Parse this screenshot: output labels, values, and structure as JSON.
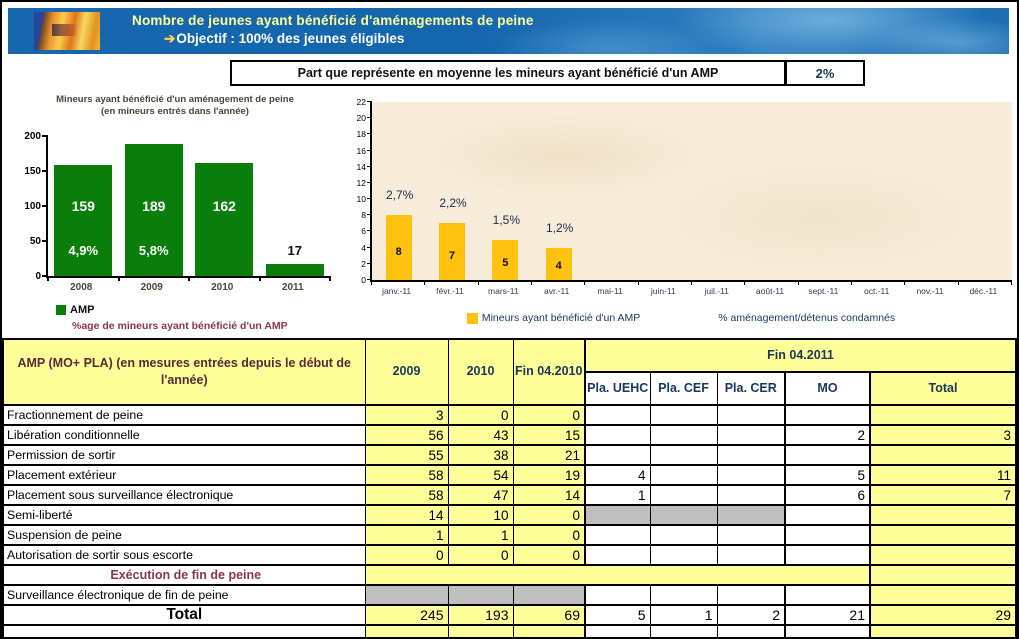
{
  "header": {
    "title": "Nombre de jeunes ayant bénéficié d'aménagements de peine",
    "objective_arrow": "➔",
    "objective": "Objectif : 100% des jeunes éligibles"
  },
  "subheader": {
    "label": "Part que représente en moyenne les mineurs ayant bénéficié d'un AMP",
    "value": "2%"
  },
  "colors": {
    "green_bar": "#0a7d0a",
    "gold_bar": "#ffc20e",
    "table_yellow": "#ffff99",
    "table_gray": "#bfbfbf",
    "navy_text": "#17375E",
    "maroon_text": "#8a3550",
    "header_blue": "#1667ae",
    "header_title_yellow": "#ffff99"
  },
  "chart_data": [
    {
      "type": "bar",
      "title": "Mineurs ayant bénéficié d'un aménagement de peine",
      "subtitle": "(en mineurs entrés dans l'année)",
      "categories": [
        "2008",
        "2009",
        "2010",
        "2011"
      ],
      "values": [
        159,
        189,
        162,
        17
      ],
      "pct_labels": [
        "4,9%",
        "5,8%",
        "",
        ""
      ],
      "xlabel": "",
      "ylabel": "",
      "ylim": [
        0,
        200
      ],
      "yticks": [
        0,
        50,
        100,
        150,
        200
      ],
      "grid": false,
      "bar_color": "#0a7d0a",
      "legend": [
        {
          "label": "AMP",
          "color": "#0a7d0a"
        }
      ],
      "legend_position": "bottom-left",
      "caption": "%age de mineurs ayant bénéficié d'un AMP"
    },
    {
      "type": "bar",
      "title": "",
      "categories": [
        "janv.-11",
        "févr.-11",
        "mars-11",
        "avr.-11",
        "mai-11",
        "juin-11",
        "juil.-11",
        "août-11",
        "sept.-11",
        "oct.-11",
        "nov.-11",
        "déc.-11"
      ],
      "values": [
        8,
        7,
        5,
        4,
        null,
        null,
        null,
        null,
        null,
        null,
        null,
        null
      ],
      "pct_labels": [
        "2,7%",
        "2,2%",
        "1,5%",
        "1,2%",
        "",
        "",
        "",
        "",
        "",
        "",
        "",
        ""
      ],
      "xlabel": "",
      "ylabel": "",
      "ylim": [
        0,
        22
      ],
      "yticks": [
        0,
        2,
        4,
        6,
        8,
        10,
        12,
        14,
        16,
        18,
        20,
        22
      ],
      "grid": false,
      "bar_color": "#ffc20e",
      "plot_bg": "#f6ecd9",
      "legend": [
        {
          "label": "Mineurs ayant bénéficié d'un AMP",
          "color": "#ffc20e"
        },
        {
          "label": "% aménagement/détenus condamnés",
          "color": null
        }
      ],
      "legend_position": "bottom-center"
    }
  ],
  "table": {
    "header": {
      "row_header": "AMP  (MO+ PLA) (en mesures entrées depuis le début de l'année)",
      "col_2009": "2009",
      "col_2010": "2010",
      "col_fin2010": "Fin 04.2010",
      "group_fin2011": "Fin 04.2011",
      "sub_cols": [
        "Pla. UEHC",
        "Pla. CEF",
        "Pla. CER",
        "MO",
        "Total"
      ]
    },
    "rows": [
      {
        "type": "data",
        "label": "Fractionnement de peine",
        "cells": [
          "3",
          "0",
          "0",
          "",
          "",
          "",
          "",
          ""
        ]
      },
      {
        "type": "data",
        "label": "Libération conditionnelle",
        "cells": [
          "56",
          "43",
          "15",
          "",
          "",
          "",
          "2",
          "3"
        ]
      },
      {
        "type": "data",
        "label": "Permission de sortir",
        "cells": [
          "55",
          "38",
          "21",
          "",
          "",
          "",
          "",
          ""
        ]
      },
      {
        "type": "data",
        "label": "Placement extérieur",
        "cells": [
          "58",
          "54",
          "19",
          "4",
          "",
          "",
          "5",
          "11"
        ]
      },
      {
        "type": "data",
        "label": "Placement sous surveillance électronique",
        "cells": [
          "58",
          "47",
          "14",
          "1",
          "",
          "",
          "6",
          "7"
        ]
      },
      {
        "type": "data",
        "label": "Semi-liberté",
        "cells": [
          "14",
          "10",
          "0",
          "",
          "",
          "",
          "",
          ""
        ],
        "gray_cells": [
          3,
          4,
          5
        ]
      },
      {
        "type": "data",
        "label": "Suspension de peine",
        "cells": [
          "1",
          "1",
          "0",
          "",
          "",
          "",
          "",
          ""
        ]
      },
      {
        "type": "data",
        "label": "Autorisation de sortir sous escorte",
        "cells": [
          "0",
          "0",
          "0",
          "",
          "",
          "",
          "",
          ""
        ]
      },
      {
        "type": "section",
        "label": "Exécution de fin de peine"
      },
      {
        "type": "data",
        "label": "Surveillance électronique de fin de peine",
        "cells": [
          "",
          "",
          "",
          "",
          "",
          "",
          "",
          ""
        ],
        "gray_cells": [
          0,
          1,
          2
        ]
      },
      {
        "type": "total",
        "label": "Total",
        "cells": [
          "245",
          "193",
          "69",
          "5",
          "1",
          "2",
          "21",
          "29"
        ]
      }
    ]
  }
}
